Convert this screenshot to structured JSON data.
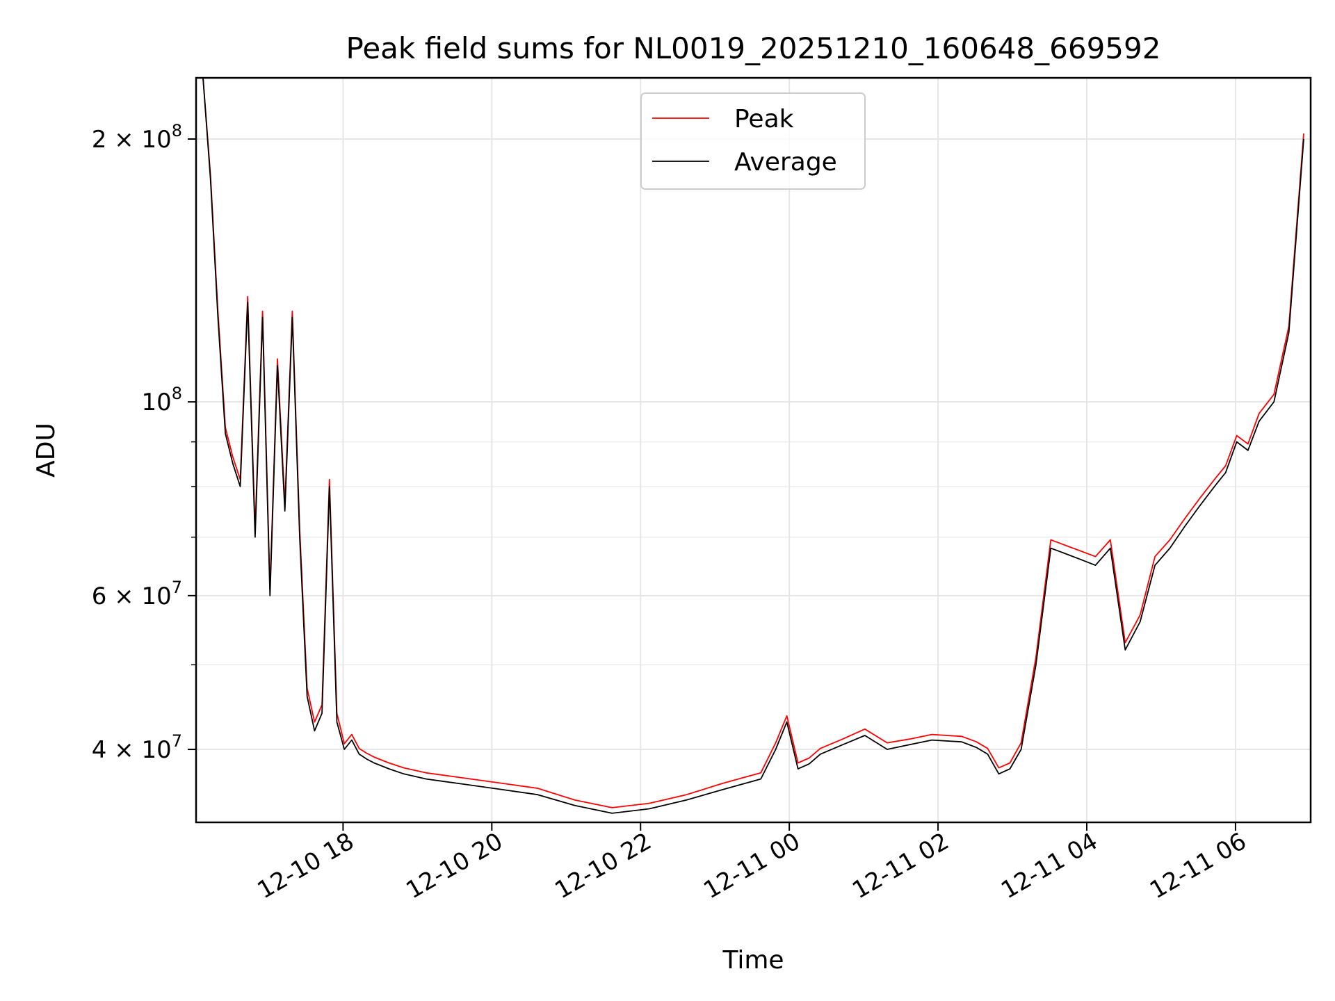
{
  "chart_data": {
    "type": "line",
    "title": "Peak field sums for NL0019_20251210_160648_669592",
    "xlabel": "Time",
    "ylabel": "ADU",
    "y_scale": "log",
    "ylim": [
      33000000,
      235000000
    ],
    "xlim": [
      "12-10 16:07",
      "12-11 06:55"
    ],
    "grid": true,
    "legend_position": "top-center",
    "x_ticks": [
      "12-10 18",
      "12-10 20",
      "12-10 22",
      "12-11 00",
      "12-11 02",
      "12-11 04",
      "12-11 06"
    ],
    "y_ticks": [
      {
        "value": 40000000,
        "label_base": "4 × 10",
        "label_exp": "7"
      },
      {
        "value": 60000000,
        "label_base": "6 × 10",
        "label_exp": "7"
      },
      {
        "value": 100000000,
        "label_base": "10",
        "label_exp": "8"
      },
      {
        "value": 200000000,
        "label_base": "2 × 10",
        "label_exp": "8"
      }
    ],
    "series": [
      {
        "name": "Peak",
        "color": "#ff0000"
      },
      {
        "name": "Average",
        "color": "#000000"
      }
    ],
    "x_hours": [
      0.0,
      0.1,
      0.2,
      0.3,
      0.4,
      0.5,
      0.6,
      0.7,
      0.8,
      0.9,
      1.0,
      1.1,
      1.2,
      1.3,
      1.4,
      1.5,
      1.6,
      1.7,
      1.8,
      1.9,
      2.0,
      2.1,
      2.2,
      2.3,
      2.5,
      2.7,
      3.0,
      3.5,
      4.0,
      4.5,
      5.0,
      5.5,
      6.0,
      6.5,
      7.0,
      7.5,
      7.7,
      7.85,
      8.0,
      8.15,
      8.3,
      8.6,
      8.9,
      9.2,
      9.5,
      9.8,
      10.2,
      10.4,
      10.55,
      10.7,
      10.85,
      11.0,
      11.2,
      11.4,
      11.6,
      11.8,
      12.0,
      12.2,
      12.4,
      12.6,
      12.8,
      13.0,
      13.2,
      13.4,
      13.6,
      13.75,
      13.9,
      14.05,
      14.2,
      14.4,
      14.6,
      14.8
    ],
    "average_values": [
      235000000,
      180000000,
      125000000,
      92000000,
      85000000,
      80000000,
      130000000,
      70000000,
      125000000,
      60000000,
      110000000,
      75000000,
      125000000,
      70000000,
      46000000,
      42000000,
      44000000,
      80000000,
      43000000,
      40000000,
      41000000,
      39500000,
      39000000,
      38600000,
      38000000,
      37500000,
      37000000,
      36500000,
      36000000,
      35500000,
      34500000,
      33800000,
      34200000,
      35000000,
      36000000,
      37000000,
      40000000,
      43000000,
      38000000,
      38500000,
      39500000,
      40500000,
      41500000,
      40000000,
      40500000,
      41000000,
      40800000,
      40200000,
      39500000,
      37500000,
      38000000,
      40000000,
      50000000,
      68000000,
      67000000,
      66000000,
      65000000,
      68000000,
      52000000,
      56000000,
      65000000,
      68000000,
      72000000,
      76000000,
      80000000,
      83000000,
      90000000,
      88000000,
      95000000,
      100000000,
      120000000,
      200000000
    ],
    "peak_values": [
      235000000,
      182000000,
      127000000,
      93500000,
      86500000,
      81500000,
      132000000,
      71500000,
      127000000,
      61000000,
      112000000,
      76500000,
      127000000,
      71500000,
      47000000,
      43000000,
      45000000,
      81500000,
      44000000,
      40600000,
      41600000,
      40100000,
      39600000,
      39200000,
      38600000,
      38100000,
      37600000,
      37100000,
      36600000,
      36100000,
      35000000,
      34300000,
      34700000,
      35500000,
      36600000,
      37600000,
      40700000,
      43700000,
      38600000,
      39100000,
      40100000,
      41100000,
      42200000,
      40700000,
      41100000,
      41600000,
      41400000,
      40800000,
      40100000,
      38100000,
      38600000,
      40700000,
      51000000,
      69500000,
      68500000,
      67500000,
      66500000,
      69500000,
      53000000,
      57000000,
      66500000,
      69500000,
      73500000,
      77500000,
      81500000,
      84500000,
      91500000,
      89500000,
      97000000,
      102000000,
      122000000,
      203000000
    ]
  }
}
